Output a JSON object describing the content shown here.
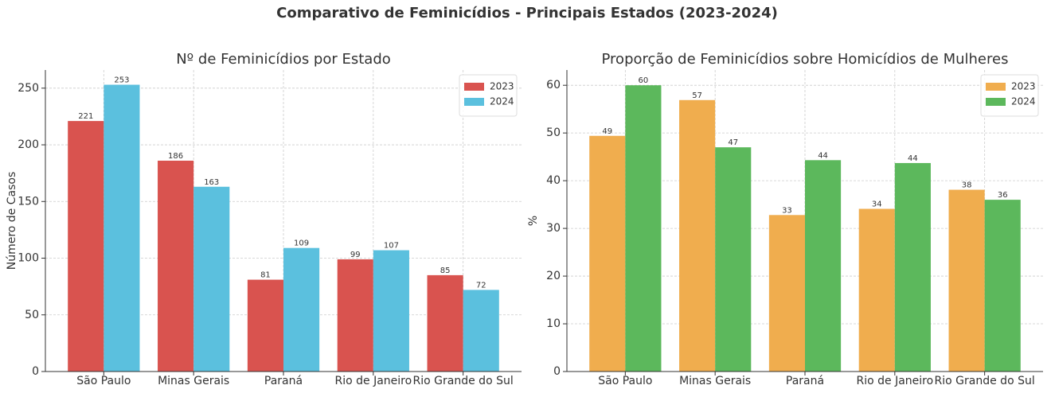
{
  "title": "Comparativo de Feminicídios - Principais Estados (2023-2024)",
  "chart_data": [
    {
      "type": "bar",
      "title": "Nº de Feminicídios por Estado",
      "y_label": "Número de Casos",
      "categories": [
        "São Paulo",
        "Minas Gerais",
        "Paraná",
        "Rio de Janeiro",
        "Rio Grande do Sul"
      ],
      "series": [
        {
          "name": "2023",
          "color": "#d9534f",
          "values": [
            221,
            186,
            81,
            99,
            85
          ]
        },
        {
          "name": "2024",
          "color": "#5bc0de",
          "values": [
            253,
            163,
            109,
            107,
            72
          ]
        }
      ],
      "ylim": [
        0,
        266
      ],
      "yticks": [
        0,
        50,
        100,
        150,
        200,
        250
      ],
      "grid": true,
      "legend": "upper-right"
    },
    {
      "type": "bar",
      "title": "Proporção de Feminicídios sobre Homicídios de Mulheres",
      "y_label": "%",
      "categories": [
        "São Paulo",
        "Minas Gerais",
        "Paraná",
        "Rio de Janeiro",
        "Rio Grande do Sul"
      ],
      "series": [
        {
          "name": "2023",
          "color": "#f0ad4e",
          "values": [
            49.4,
            56.9,
            32.8,
            34.1,
            38.1
          ],
          "value_labels": [
            "49",
            "57",
            "33",
            "34",
            "38"
          ]
        },
        {
          "name": "2024",
          "color": "#5cb85c",
          "values": [
            60,
            47,
            44.3,
            43.7,
            36
          ],
          "value_labels": [
            "60",
            "47",
            "44",
            "44",
            "36"
          ]
        }
      ],
      "ylim": [
        0,
        63.2
      ],
      "yticks": [
        0,
        10,
        20,
        30,
        40,
        50,
        60
      ],
      "grid": true,
      "legend": "upper-right"
    }
  ]
}
